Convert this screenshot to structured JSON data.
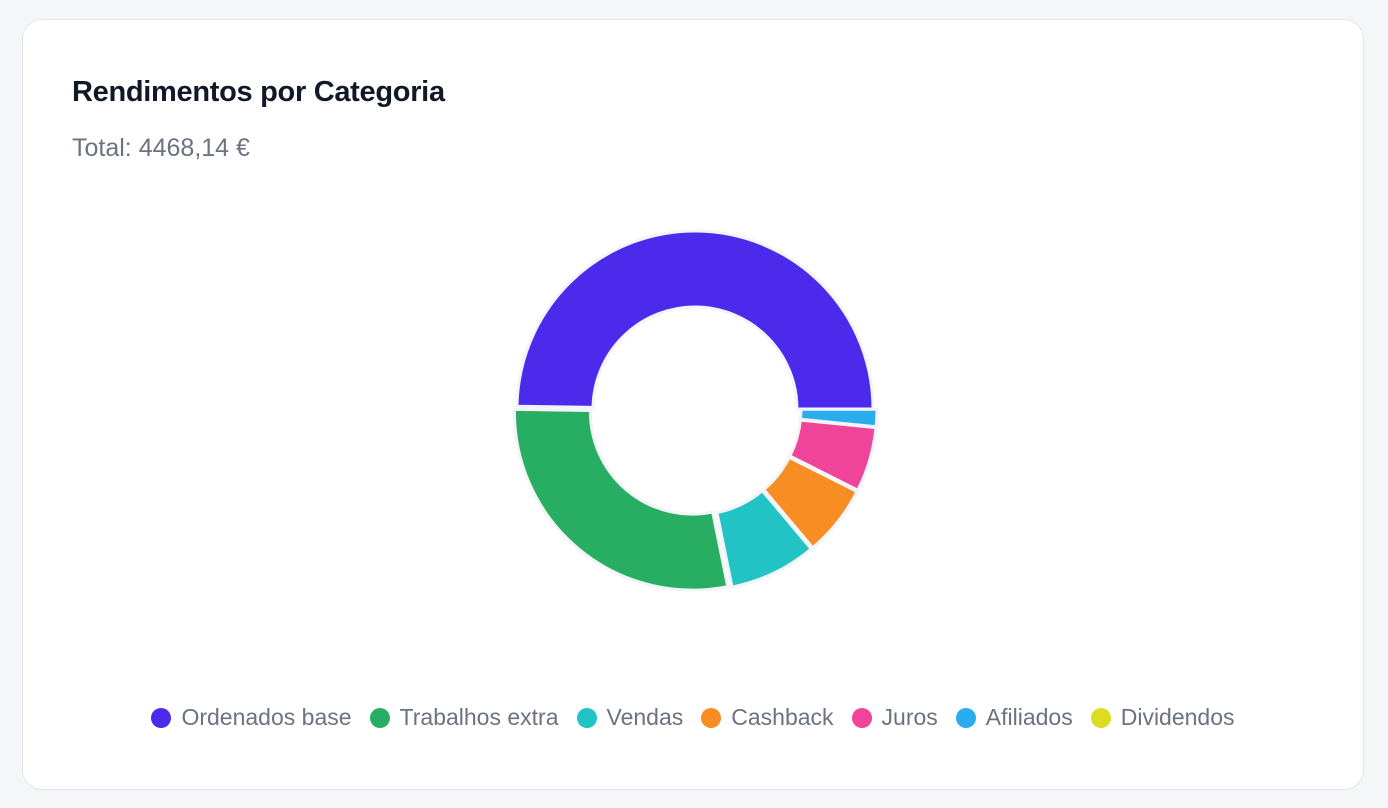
{
  "card": {
    "title": "Rendimentos por Categoria",
    "total": "Total: 4468,14 €"
  },
  "chart_data": {
    "type": "doughnut",
    "title": "Rendimentos por Categoria",
    "unit": "€",
    "total": 4468.14,
    "legend_position": "bottom",
    "categories": [
      "Ordenados base",
      "Trabalhos extra",
      "Vendas",
      "Cashback",
      "Juros",
      "Afiliados",
      "Dividendos"
    ],
    "values": [
      2223.14,
      1270,
      355,
      288,
      262,
      70,
      0
    ],
    "colors": [
      "#4b2aec",
      "#28ae62",
      "#22c3c4",
      "#f78d23",
      "#f0439a",
      "#2aadef",
      "#dcdc22"
    ]
  }
}
